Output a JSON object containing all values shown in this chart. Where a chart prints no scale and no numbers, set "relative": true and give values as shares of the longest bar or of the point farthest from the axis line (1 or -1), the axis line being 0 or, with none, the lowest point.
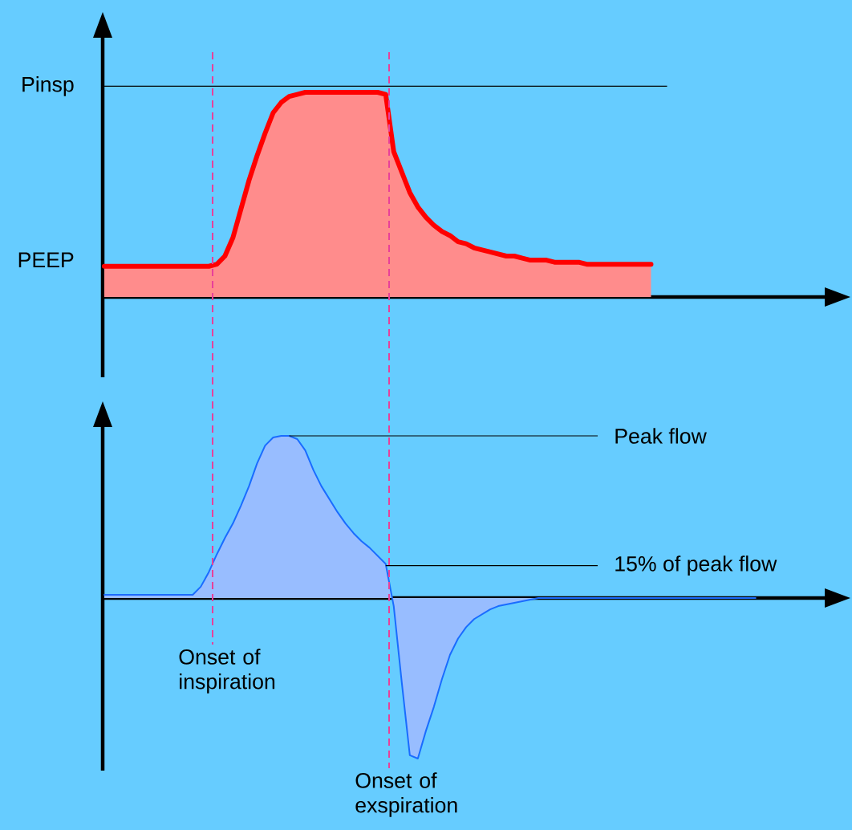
{
  "chart_data": [
    {
      "type": "area",
      "relative": true,
      "color": "#ff0000",
      "categories": [
        null,
        null,
        null,
        null,
        null,
        null,
        null,
        null,
        null,
        null,
        null,
        null,
        null,
        null,
        null,
        null,
        null,
        null,
        null,
        null,
        null,
        null,
        null,
        null,
        null,
        null,
        null,
        null,
        null,
        null,
        null,
        null,
        null,
        null,
        null,
        null,
        null,
        null,
        null,
        null,
        null,
        null,
        null,
        null,
        null,
        null,
        null,
        null,
        null,
        null,
        null,
        null,
        null,
        null,
        null,
        null,
        null,
        null,
        null,
        null,
        null,
        null,
        null,
        null,
        null,
        null,
        null,
        null,
        null,
        null,
        null,
        null,
        null,
        null,
        null,
        null,
        null,
        null,
        null,
        null,
        null,
        null,
        null,
        null,
        null,
        null,
        null,
        null,
        null,
        null,
        null,
        null
      ],
      "values": [
        0.15,
        0.15,
        0.15,
        0.15,
        0.15,
        0.15,
        0.15,
        0.15,
        0.15,
        0.15,
        0.15,
        0.15,
        0.15,
        0.15,
        0.16,
        0.2,
        0.29,
        0.43,
        0.57,
        0.69,
        0.8,
        0.9,
        0.95,
        0.98,
        0.99,
        1.0,
        1.0,
        1.0,
        1.0,
        1.0,
        1.0,
        1.0,
        1.0,
        1.0,
        1.0,
        0.99,
        0.71,
        0.61,
        0.51,
        0.44,
        0.39,
        0.35,
        0.32,
        0.3,
        0.27,
        0.26,
        0.24,
        0.23,
        0.22,
        0.21,
        0.2,
        0.2,
        0.19,
        0.18,
        0.18,
        0.18,
        0.17,
        0.17,
        0.17,
        0.17,
        0.16,
        0.16,
        0.16,
        0.16,
        0.16,
        0.16,
        0.16,
        0.16,
        0.16,
        null,
        null,
        null,
        null,
        null,
        null,
        null,
        null,
        null,
        null,
        null,
        null,
        null,
        null,
        null,
        null,
        null,
        null,
        null,
        null,
        null,
        null,
        null
      ],
      "ref_lines": [
        {
          "axis": "y",
          "value": 1.03,
          "label": "Pinsp",
          "color": "#000000"
        }
      ],
      "annotations": [
        "PEEP"
      ]
    },
    {
      "type": "area",
      "relative": true,
      "color": "#1a6cff",
      "categories": [
        null,
        null,
        null,
        null,
        null,
        null,
        null,
        null,
        null,
        null,
        null,
        null,
        null,
        null,
        null,
        null,
        null,
        null,
        null,
        null,
        null,
        null,
        null,
        null,
        null,
        null,
        null,
        null,
        null,
        null,
        null,
        null,
        null,
        null,
        null,
        null,
        null,
        null,
        null,
        null,
        null,
        null,
        null,
        null,
        null,
        null,
        null,
        null,
        null,
        null,
        null,
        null,
        null,
        null,
        null,
        null,
        null,
        null,
        null,
        null,
        null,
        null,
        null,
        null,
        null,
        null,
        null,
        null,
        null,
        null,
        null,
        null,
        null,
        null,
        null,
        null,
        null,
        null,
        null,
        null,
        null,
        null,
        null,
        null,
        null,
        null,
        null,
        null,
        null,
        null,
        null,
        null
      ],
      "values": [
        0.02,
        0.02,
        0.02,
        0.02,
        0.02,
        0.02,
        0.02,
        0.02,
        0.02,
        0.02,
        0.02,
        0.02,
        0.07,
        0.16,
        0.27,
        0.37,
        0.46,
        0.57,
        0.69,
        0.83,
        0.94,
        0.99,
        1.0,
        1.0,
        0.98,
        0.91,
        0.79,
        0.69,
        0.61,
        0.53,
        0.46,
        0.4,
        0.35,
        0.31,
        0.26,
        0.21,
        -0.05,
        -0.52,
        -0.97,
        -0.99,
        -0.82,
        -0.67,
        -0.5,
        -0.35,
        -0.25,
        -0.18,
        -0.13,
        -0.1,
        -0.07,
        -0.05,
        -0.04,
        -0.03,
        -0.02,
        -0.01,
        0,
        0,
        0,
        0,
        0,
        0,
        0,
        0,
        0,
        0,
        0,
        0,
        0,
        0,
        0,
        0,
        0,
        0,
        0,
        0,
        0,
        0,
        0,
        0,
        0,
        0,
        0,
        0,
        null,
        null,
        null,
        null,
        null,
        null,
        null,
        null,
        null,
        null
      ],
      "ref_lines": [
        {
          "axis": "y",
          "value": 1.0,
          "label": "Peak flow",
          "color": "#000000"
        },
        {
          "axis": "y",
          "value": 0.2,
          "label": "15% of peak flow",
          "color": "#000000"
        }
      ],
      "annotations": [
        "Onset of inspiration",
        "Onset of exspiration"
      ]
    }
  ]
}
